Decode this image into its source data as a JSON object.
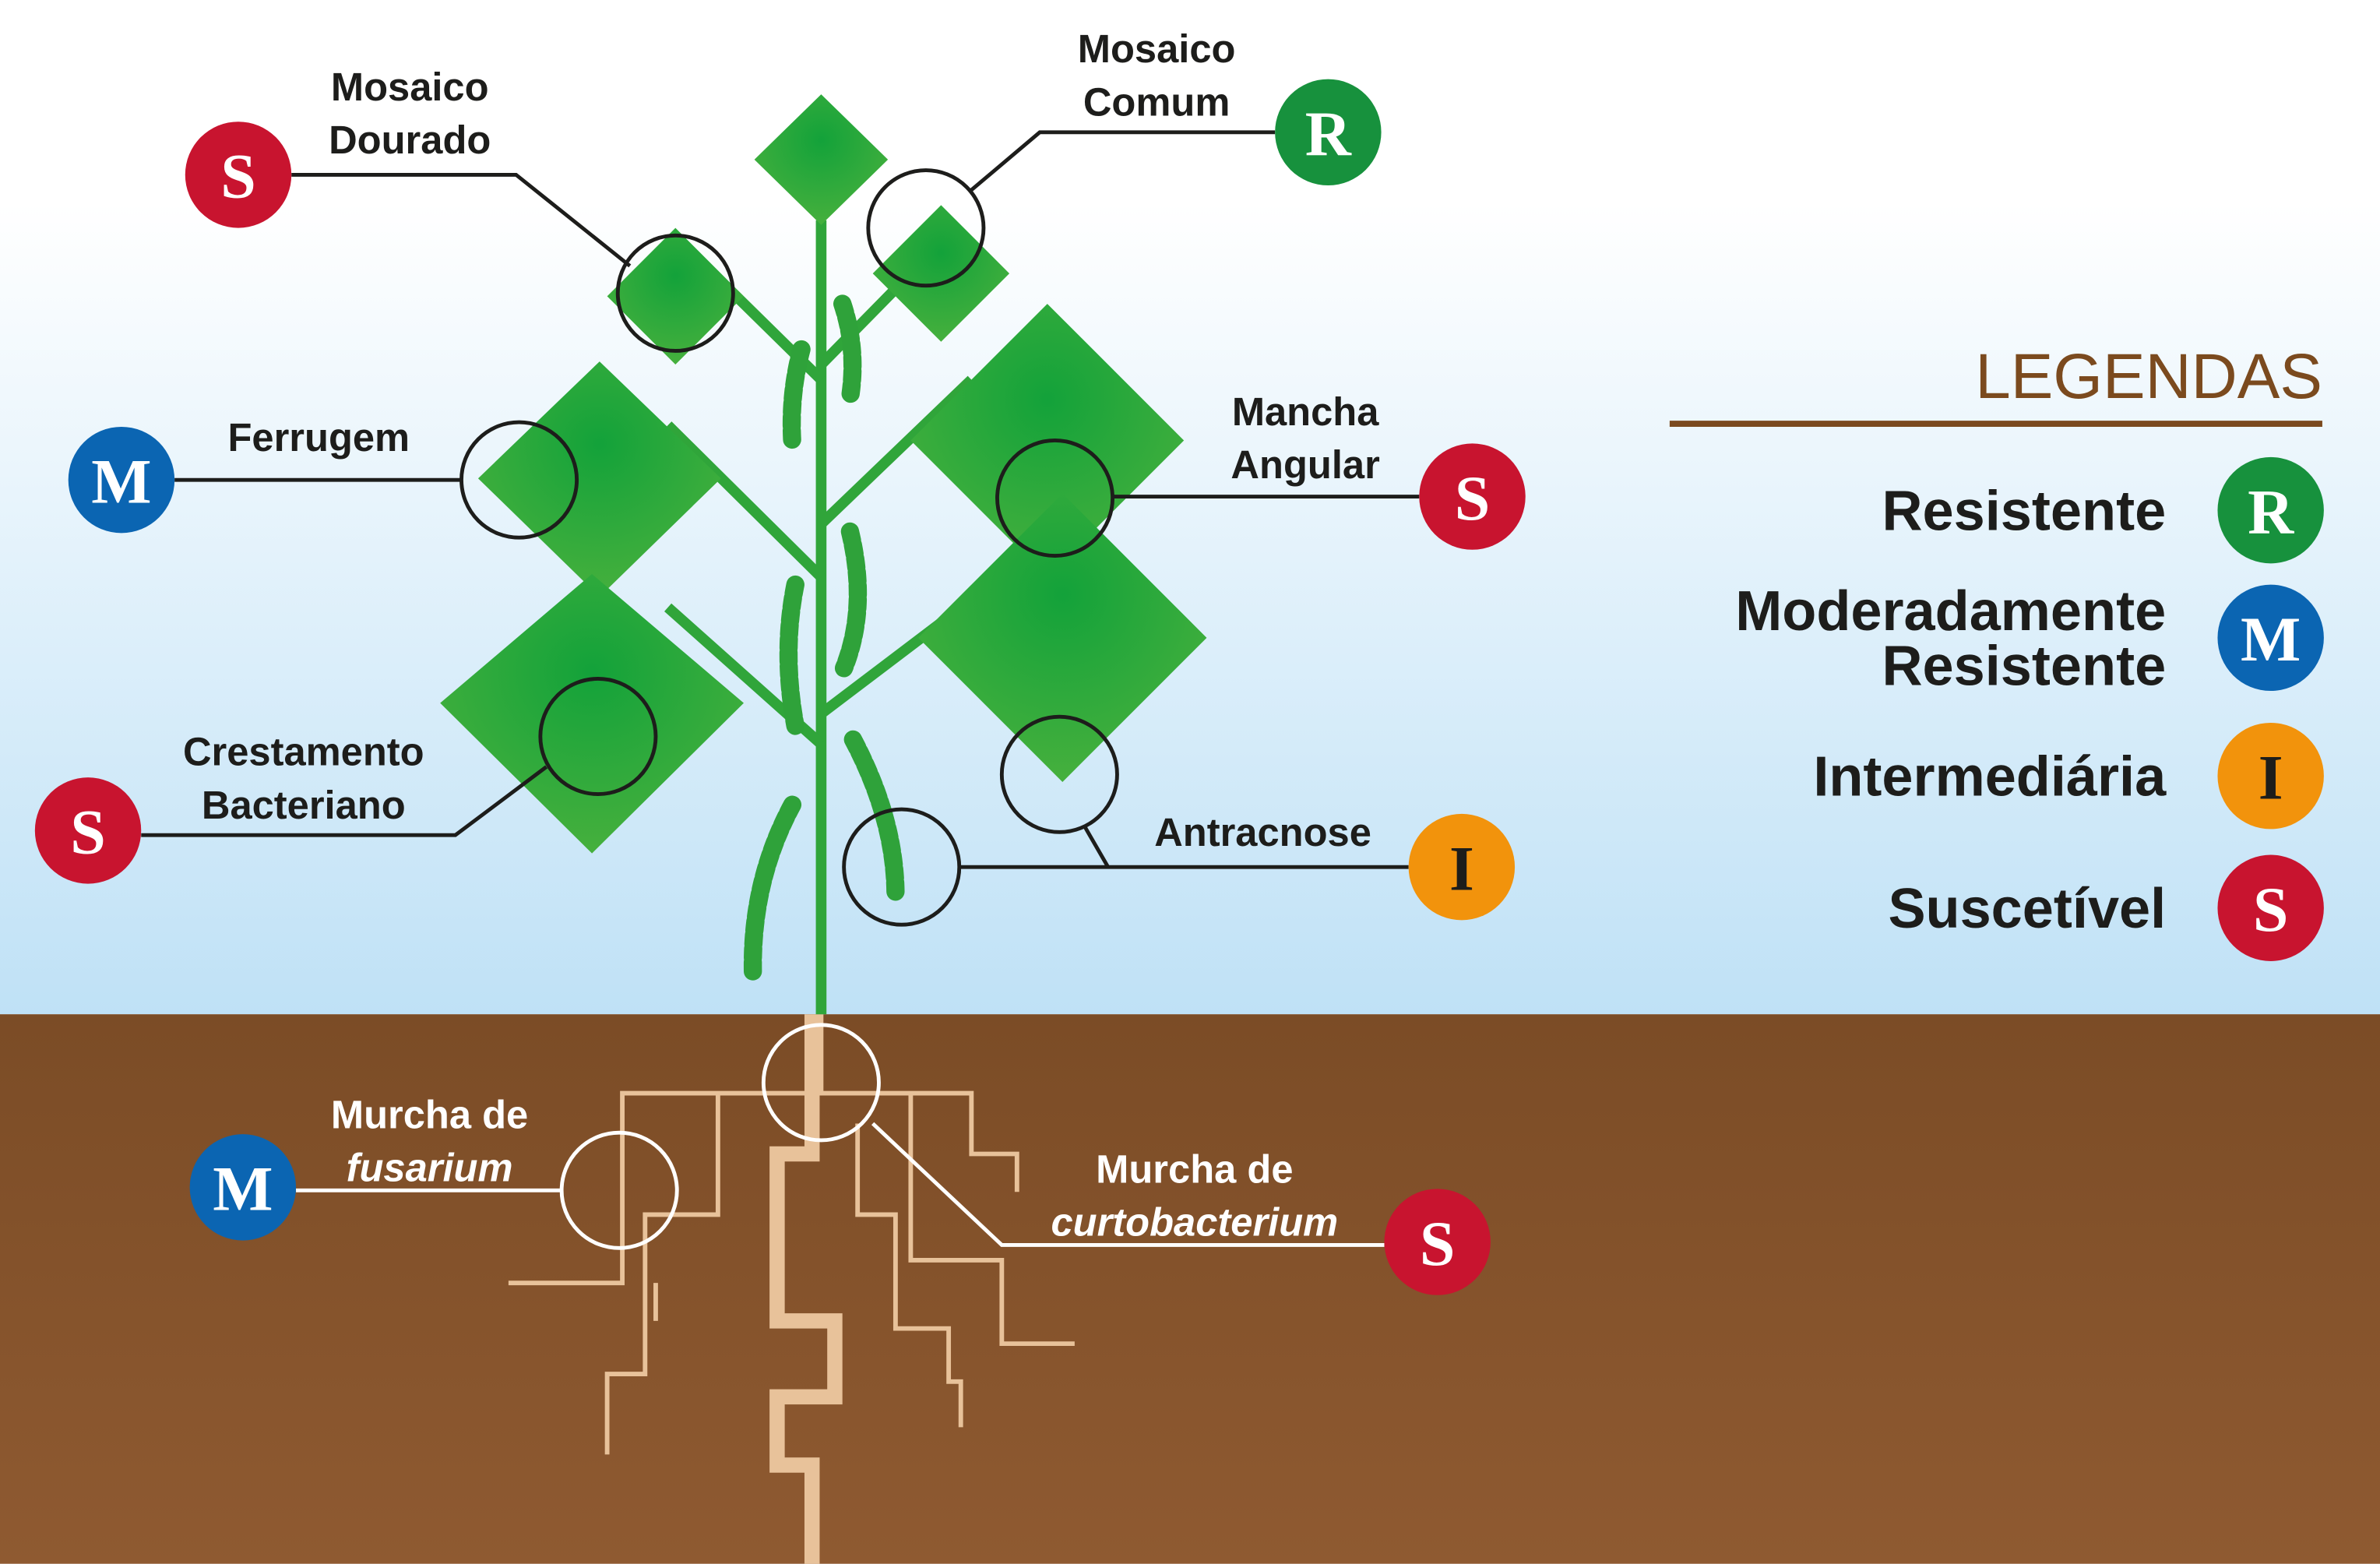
{
  "diseases": [
    {
      "lines": [
        "Mosaico",
        "Dourado"
      ],
      "rating": "S"
    },
    {
      "lines": [
        "Mosaico",
        "Comum"
      ],
      "rating": "R"
    },
    {
      "lines": [
        "Ferrugem"
      ],
      "rating": "M"
    },
    {
      "lines": [
        "Mancha",
        "Angular"
      ],
      "rating": "S"
    },
    {
      "lines": [
        "Crestamento",
        "Bacteriano"
      ],
      "rating": "S"
    },
    {
      "lines": [
        "Antracnose"
      ],
      "rating": "I"
    },
    {
      "lines": [
        "Murcha de",
        "fusarium"
      ],
      "rating": "M"
    },
    {
      "lines": [
        "Murcha de",
        "curtobacterium"
      ],
      "rating": "S"
    }
  ],
  "legend": {
    "title": "LEGENDAS",
    "items": [
      {
        "lines": [
          "Resistente"
        ],
        "letter": "R",
        "color": "#17913d",
        "letter_color": "#ffffff"
      },
      {
        "lines": [
          "Moderadamente",
          "Resistente"
        ],
        "letter": "M",
        "color": "#0b65b2",
        "letter_color": "#ffffff"
      },
      {
        "lines": [
          "Intermediária"
        ],
        "letter": "I",
        "color": "#f2930c",
        "letter_color": "#1d1d1b"
      },
      {
        "lines": [
          "Suscetível"
        ],
        "letter": "S",
        "color": "#c8142f",
        "letter_color": "#ffffff"
      }
    ]
  }
}
